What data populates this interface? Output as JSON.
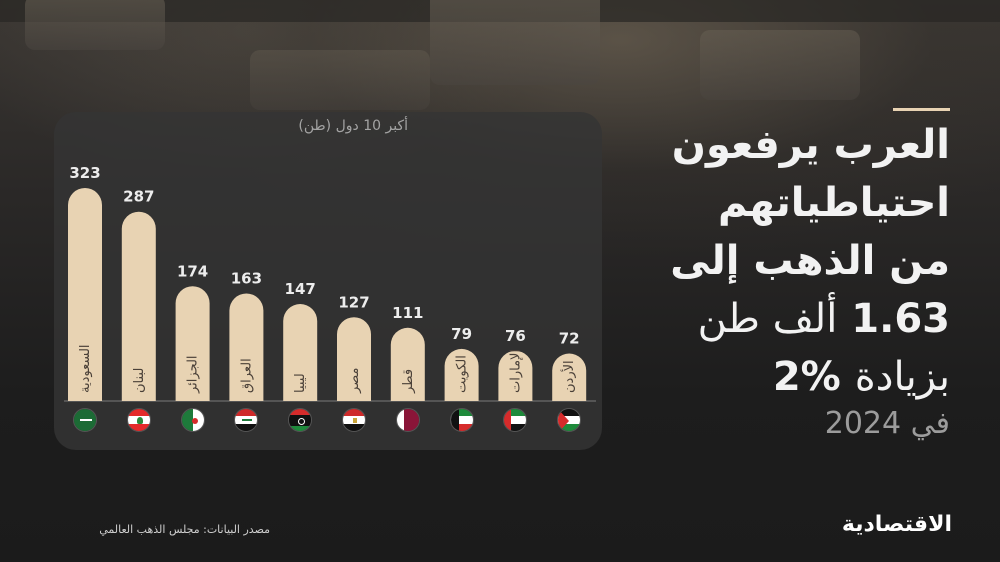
{
  "headline": {
    "line1": "العرب يرفعون",
    "line2": "احتياطياتهم",
    "line3": "من الذهب إلى",
    "line4_number": "1.63",
    "line4_text": "ألف طن",
    "line5_text": "بزيادة",
    "line5_number": "2%",
    "year": "في 2024"
  },
  "source": "مصدر البيانات: مجلس الذهب العالمي",
  "logo": "الاقتصادية",
  "colors": {
    "bar": "#e8d3b3",
    "panel": "#343434",
    "accent": "#e8d3b3"
  },
  "chart_data": {
    "type": "bar",
    "subtitle": "أكبر 10 دول (طن)",
    "categories": [
      "السعودية",
      "لبنان",
      "الجزائر",
      "العراق",
      "ليبيا",
      "مصر",
      "قطر",
      "الكويت",
      "الإمارات",
      "الأردن"
    ],
    "values": [
      323,
      287,
      174,
      163,
      147,
      127,
      111,
      79,
      76,
      72
    ],
    "value_labels": [
      "323",
      "287",
      "174",
      "163",
      "147",
      "127",
      "111",
      "79",
      "76",
      "72"
    ],
    "flag_icons": [
      "saudi-flag-icon",
      "lebanon-flag-icon",
      "algeria-flag-icon",
      "iraq-flag-icon",
      "libya-flag-icon",
      "egypt-flag-icon",
      "qatar-flag-icon",
      "kuwait-flag-icon",
      "uae-flag-icon",
      "jordan-flag-icon"
    ],
    "ylim": [
      0,
      323
    ],
    "grid": false,
    "legend": "none"
  }
}
